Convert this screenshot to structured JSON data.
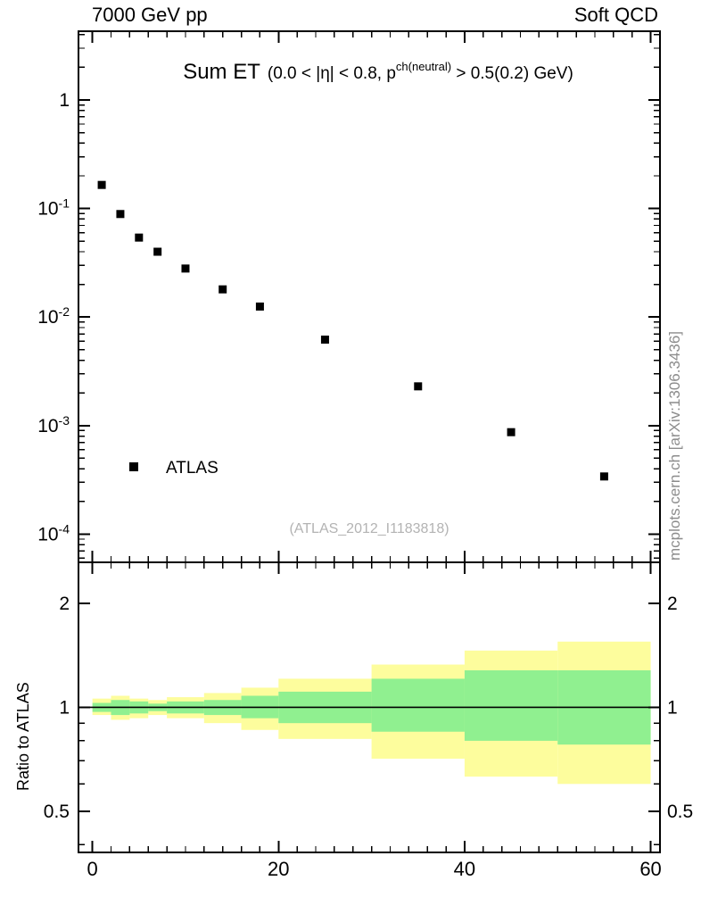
{
  "header": {
    "left": "7000 GeV pp",
    "right": "Soft QCD"
  },
  "watermark": "mcplots.cern.ch [arXiv:1306.3436]",
  "chart_data": {
    "type": "scatter",
    "title": "Sum ET",
    "title_detail": {
      "pre": "(0.0 < |η| < 0.8, p",
      "sup": "ch(neutral)",
      "post": " > 0.5(0.2) GeV)"
    },
    "reference_label": "(ATLAS_2012_I1183818)",
    "xlim": [
      -1.5,
      61
    ],
    "xticks": [
      0,
      20,
      40,
      60
    ],
    "x_minor_step": 2,
    "yscale": "log",
    "ylim": [
      5.5e-05,
      4.3
    ],
    "ytick_exponents": [
      0,
      -1,
      -2,
      -3,
      -4
    ],
    "series": [
      {
        "name": "ATLAS",
        "marker": "filled-square",
        "color": "#000000",
        "x": [
          1,
          3,
          5,
          7,
          10,
          14,
          18,
          25,
          35,
          45,
          55
        ],
        "y": [
          0.165,
          0.089,
          0.054,
          0.04,
          0.028,
          0.018,
          0.0125,
          0.0062,
          0.0023,
          0.00087,
          0.00034
        ]
      }
    ],
    "ratio_panel": {
      "ylabel": "Ratio to ATLAS",
      "yscale": "log",
      "ylim": [
        0.38,
        2.63
      ],
      "yticks": [
        0.5,
        1,
        2
      ],
      "ytick_labels": [
        "0.5",
        "1",
        "2"
      ],
      "minor_yticks": [
        0.4,
        0.6,
        0.7,
        0.8,
        0.9
      ],
      "reference_line": 1,
      "band_colors": {
        "outer": "#fdfd9d",
        "inner": "#90f090"
      },
      "bands": [
        {
          "x0": 0,
          "x1": 2,
          "outer": [
            0.95,
            1.06
          ],
          "inner": [
            0.97,
            1.03
          ]
        },
        {
          "x0": 2,
          "x1": 4,
          "outer": [
            0.92,
            1.08
          ],
          "inner": [
            0.95,
            1.05
          ]
        },
        {
          "x0": 4,
          "x1": 6,
          "outer": [
            0.93,
            1.06
          ],
          "inner": [
            0.96,
            1.04
          ]
        },
        {
          "x0": 6,
          "x1": 8,
          "outer": [
            0.95,
            1.05
          ],
          "inner": [
            0.975,
            1.025
          ]
        },
        {
          "x0": 8,
          "x1": 12,
          "outer": [
            0.93,
            1.07
          ],
          "inner": [
            0.96,
            1.04
          ]
        },
        {
          "x0": 12,
          "x1": 16,
          "outer": [
            0.9,
            1.1
          ],
          "inner": [
            0.95,
            1.05
          ]
        },
        {
          "x0": 16,
          "x1": 20,
          "outer": [
            0.86,
            1.14
          ],
          "inner": [
            0.93,
            1.08
          ]
        },
        {
          "x0": 20,
          "x1": 30,
          "outer": [
            0.81,
            1.21
          ],
          "inner": [
            0.9,
            1.11
          ]
        },
        {
          "x0": 30,
          "x1": 40,
          "outer": [
            0.71,
            1.33
          ],
          "inner": [
            0.85,
            1.21
          ]
        },
        {
          "x0": 40,
          "x1": 50,
          "outer": [
            0.63,
            1.46
          ],
          "inner": [
            0.8,
            1.28
          ]
        },
        {
          "x0": 50,
          "x1": 60,
          "outer": [
            0.6,
            1.55
          ],
          "inner": [
            0.78,
            1.28
          ]
        }
      ]
    }
  }
}
